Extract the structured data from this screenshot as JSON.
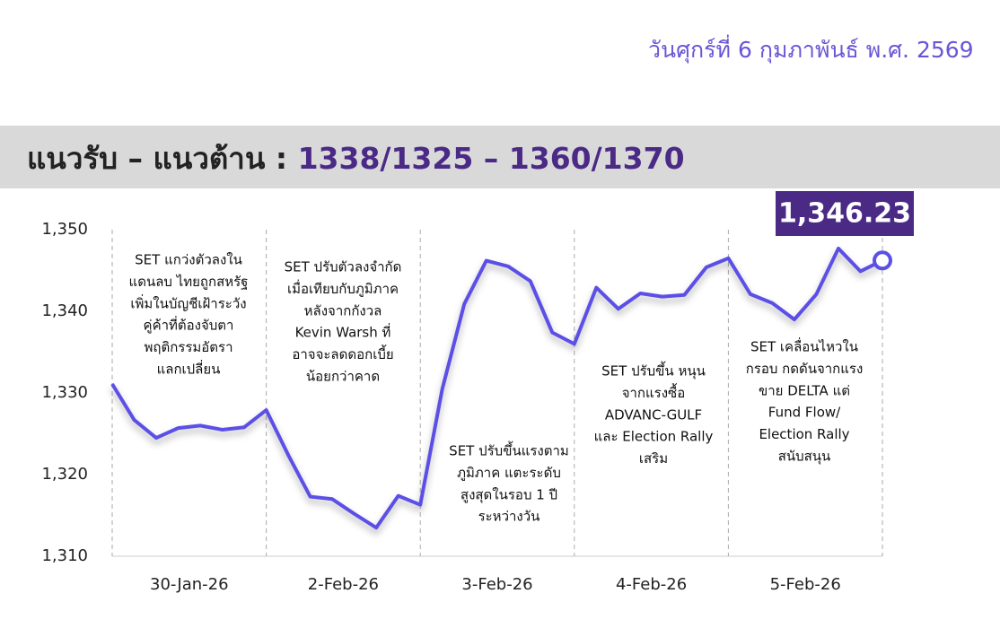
{
  "header": {
    "date": "วันศุกร์ที่ 6 กุมภาพันธ์ พ.ศ. 2569",
    "banner_label": "แนวรับ – แนวต้าน : ",
    "banner_levels": "1338/1325 – 1360/1370"
  },
  "chart_data": {
    "type": "line",
    "days": [
      "30-Jan-26",
      "2-Feb-26",
      "3-Feb-26",
      "4-Feb-26",
      "5-Feb-26"
    ],
    "series": [
      {
        "name": "SET",
        "color": "#5b50e6",
        "values": [
          1331.1,
          1326.7,
          1324.5,
          1325.7,
          1326.0,
          1325.5,
          1325.8,
          1327.9,
          1322.4,
          1317.3,
          1317.0,
          1315.2,
          1313.5,
          1317.4,
          1316.3,
          1330.5,
          1340.9,
          1346.2,
          1345.5,
          1343.7,
          1337.4,
          1336.0,
          1342.9,
          1340.3,
          1342.2,
          1341.8,
          1342.0,
          1345.4,
          1346.5,
          1342.1,
          1341.0,
          1339.0,
          1342.1,
          1347.7,
          1344.9,
          1346.23
        ]
      }
    ],
    "last_value_label": "1,346.23",
    "ylim": [
      1310,
      1350
    ],
    "yticks": [
      {
        "value": 1310,
        "label": "1,310"
      },
      {
        "value": 1320,
        "label": "1,320"
      },
      {
        "value": 1330,
        "label": "1,330"
      },
      {
        "value": 1340,
        "label": "1,340"
      },
      {
        "value": 1350,
        "label": "1,350"
      }
    ],
    "annotations": [
      [
        "SET แกว่งตัวลงใน",
        "แดนลบ ไทยถูกสหรัฐ",
        "เพิ่มในบัญชีเฝ้าระวัง",
        "คู่ค้าที่ต้องจับตา",
        "พฤติกรรมอัตรา",
        "แลกเปลี่ยน"
      ],
      [
        "SET ปรับตัวลงจำกัด",
        "เมื่อเทียบกับภูมิภาค",
        "หลังจากกังวล",
        "Kevin Warsh ที่",
        "อาจจะลดดอกเบี้ย",
        "น้อยกว่าคาด"
      ],
      [
        "SET ปรับขึ้นแรงตาม",
        "ภูมิภาค แตะระดับ",
        "สูงสุดในรอบ 1 ปี",
        "ระหว่างวัน"
      ],
      [
        "SET ปรับขึ้น หนุน",
        "จากแรงซื้อ",
        "ADVANC-GULF",
        "และ Election Rally",
        "เสริม"
      ],
      [
        "SET เคลื่อนไหวใน",
        "กรอบ กดดันจากแรง",
        "ขาย DELTA แต่",
        "Fund Flow/",
        "Election Rally",
        "สนับสนุน"
      ]
    ]
  }
}
